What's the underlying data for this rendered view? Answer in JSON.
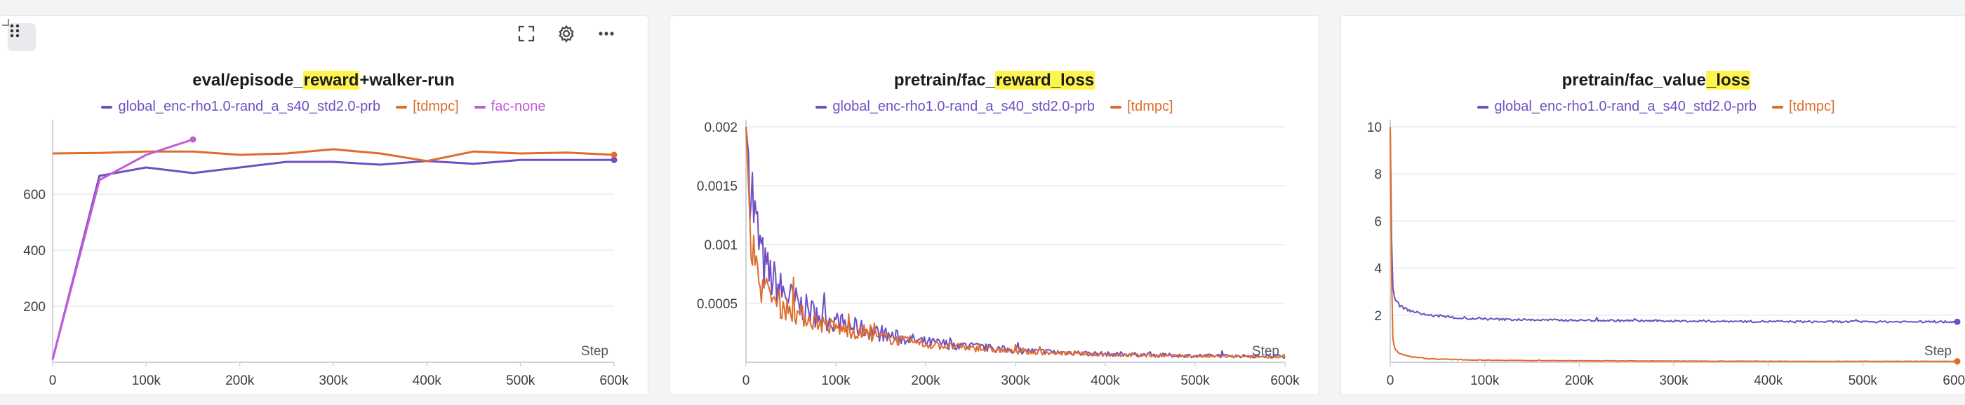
{
  "toolbar": {
    "drag_icon": "drag-grid-icon",
    "fullscreen_icon": "fullscreen-icon",
    "settings_icon": "gear-icon",
    "more_icon": "more-horizontal-icon"
  },
  "colors": {
    "purple": "#6f4fc1",
    "orange": "#df6c2c",
    "magenta": "#c35ad6",
    "grid": "#e9eaec",
    "highlight": "#fff44f"
  },
  "chart_data": [
    {
      "type": "line",
      "title_pre": "eval/episode_",
      "title_hl": "reward",
      "title_post": "+walker-run",
      "xlabel": "Step",
      "xlim": [
        0,
        600000
      ],
      "ylim": [
        0,
        840
      ],
      "xticks": [
        0,
        100000,
        200000,
        300000,
        400000,
        500000,
        600000
      ],
      "xtick_labels": [
        "0",
        "100k",
        "200k",
        "300k",
        "400k",
        "500k",
        "600k"
      ],
      "yticks": [
        200,
        400,
        600
      ],
      "ytick_labels": [
        "200",
        "400",
        "600"
      ],
      "series": [
        {
          "name": "global_enc-rho1.0-rand_a_s40_std2.0-prb",
          "color": "#6f4fc1",
          "x": [
            0,
            50000,
            100000,
            150000,
            200000,
            250000,
            300000,
            350000,
            400000,
            450000,
            500000,
            550000,
            600000
          ],
          "y": [
            10,
            665,
            695,
            675,
            695,
            715,
            715,
            705,
            718,
            708,
            722,
            722,
            722
          ]
        },
        {
          "name": "[tdmpc]",
          "color": "#df6c2c",
          "x": [
            0,
            50000,
            100000,
            150000,
            200000,
            250000,
            300000,
            350000,
            400000,
            450000,
            500000,
            550000,
            600000
          ],
          "y": [
            745,
            747,
            752,
            752,
            740,
            745,
            760,
            745,
            718,
            752,
            745,
            748,
            740
          ]
        },
        {
          "name": "fac-none",
          "color": "#c35ad6",
          "x": [
            0,
            50000,
            100000,
            150000
          ],
          "y": [
            10,
            650,
            740,
            795
          ]
        }
      ]
    },
    {
      "type": "line",
      "title_pre": "pretrain/fac_",
      "title_hl": "reward_loss",
      "title_post": "",
      "xlabel": "Step",
      "xlim": [
        0,
        600000
      ],
      "ylim": [
        0,
        0.002
      ],
      "xticks": [
        0,
        100000,
        200000,
        300000,
        400000,
        500000,
        600000
      ],
      "xtick_labels": [
        "0",
        "100k",
        "200k",
        "300k",
        "400k",
        "500k",
        "600k"
      ],
      "yticks": [
        0.0005,
        0.001,
        0.0015,
        0.002
      ],
      "ytick_labels": [
        "0.0005",
        "0.001",
        "0.0015",
        "0.002"
      ],
      "series": [
        {
          "name": "global_enc-rho1.0-rand_a_s40_std2.0-prb",
          "color": "#6f4fc1",
          "x": [
            0,
            5000,
            10000,
            20000,
            40000,
            60000,
            80000,
            100000,
            150000,
            200000,
            300000,
            400000,
            500000,
            600000
          ],
          "y": [
            0.002,
            0.0016,
            0.0012,
            0.0008,
            0.0006,
            0.00048,
            0.0004,
            0.00034,
            0.00024,
            0.00017,
            0.0001,
            7e-05,
            5.5e-05,
            5e-05
          ],
          "noise": 0.28
        },
        {
          "name": "[tdmpc]",
          "color": "#df6c2c",
          "x": [
            0,
            5000,
            10000,
            20000,
            40000,
            60000,
            80000,
            100000,
            150000,
            200000,
            300000,
            400000,
            500000,
            600000
          ],
          "y": [
            0.002,
            0.0011,
            0.0008,
            0.0006,
            0.00048,
            0.0004,
            0.00034,
            0.00029,
            0.00021,
            0.00015,
            9e-05,
            6.5e-05,
            5e-05,
            4.5e-05
          ],
          "noise": 0.24
        }
      ]
    },
    {
      "type": "line",
      "title_pre": "pretrain/fac_value",
      "title_hl": "_loss",
      "title_post": "",
      "xlabel": "Step",
      "xlim": [
        0,
        600000
      ],
      "ylim": [
        0,
        10
      ],
      "xticks": [
        0,
        100000,
        200000,
        300000,
        400000,
        500000,
        600000
      ],
      "xtick_labels": [
        "0",
        "100k",
        "200k",
        "300k",
        "400k",
        "500k",
        "600k"
      ],
      "yticks": [
        2,
        4,
        6,
        8,
        10
      ],
      "ytick_labels": [
        "2",
        "4",
        "6",
        "8",
        "10"
      ],
      "series": [
        {
          "name": "global_enc-rho1.0-rand_a_s40_std2.0-prb",
          "color": "#6f4fc1",
          "x": [
            0,
            2000,
            5000,
            10000,
            20000,
            40000,
            80000,
            150000,
            300000,
            450000,
            600000
          ],
          "y": [
            10,
            3.4,
            2.7,
            2.4,
            2.2,
            2.0,
            1.85,
            1.8,
            1.75,
            1.72,
            1.72
          ],
          "noise": 0.025
        },
        {
          "name": "[tdmpc]",
          "color": "#df6c2c",
          "x": [
            0,
            2000,
            5000,
            10000,
            20000,
            40000,
            80000,
            150000,
            300000,
            450000,
            600000
          ],
          "y": [
            10,
            1.2,
            0.5,
            0.35,
            0.25,
            0.15,
            0.1,
            0.07,
            0.05,
            0.04,
            0.04
          ],
          "noise": 0.12
        }
      ]
    }
  ]
}
